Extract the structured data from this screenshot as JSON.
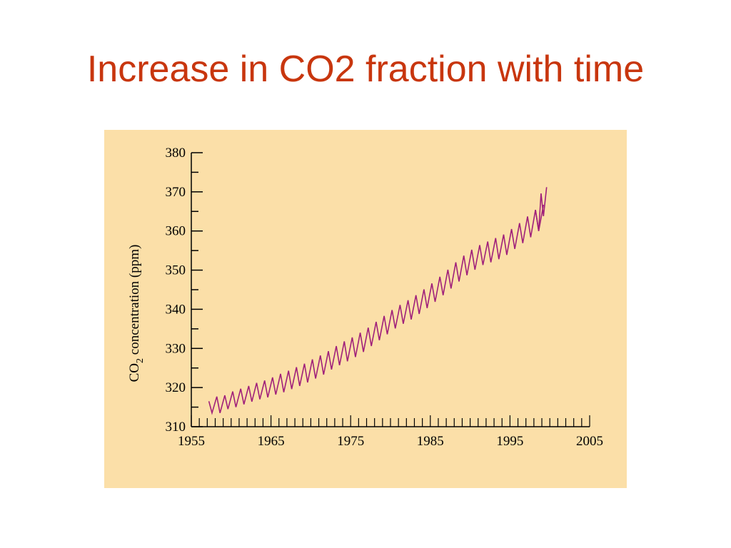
{
  "slide": {
    "title": "Increase in CO2 fraction with time",
    "title_color": "#c8360e",
    "panel_color": "#fbdfa8"
  },
  "chart_data": {
    "type": "line",
    "title": "",
    "xlabel": "",
    "ylabel": {
      "main": "CO",
      "subscript": "2",
      "rest": " concentration (ppm)"
    },
    "xlim": [
      1955,
      2005
    ],
    "ylim": [
      310,
      380
    ],
    "x_ticks": [
      "1955",
      "1965",
      "1975",
      "1985",
      "1995",
      "2005"
    ],
    "y_ticks": [
      "310",
      "320",
      "330",
      "340",
      "350",
      "360",
      "370",
      "380"
    ],
    "grid": false,
    "series": [
      {
        "color": "#a0207a",
        "x": [
          1957.2,
          1957.6,
          1958.2,
          1958.6,
          1959.2,
          1959.6,
          1960.2,
          1960.6,
          1961.2,
          1961.6,
          1962.2,
          1962.6,
          1963.2,
          1963.6,
          1964.2,
          1964.6,
          1965.2,
          1965.6,
          1966.2,
          1966.6,
          1967.2,
          1967.6,
          1968.2,
          1968.6,
          1969.2,
          1969.6,
          1970.2,
          1970.6,
          1971.2,
          1971.6,
          1972.2,
          1972.6,
          1973.2,
          1973.6,
          1974.2,
          1974.6,
          1975.2,
          1975.6,
          1976.2,
          1976.6,
          1977.2,
          1977.6,
          1978.2,
          1978.6,
          1979.2,
          1979.6,
          1980.2,
          1980.6,
          1981.2,
          1981.6,
          1982.2,
          1982.6,
          1983.2,
          1983.6,
          1984.2,
          1984.6,
          1985.2,
          1985.6,
          1986.2,
          1986.6,
          1987.2,
          1987.6,
          1988.2,
          1988.6,
          1989.2,
          1989.6,
          1990.2,
          1990.6,
          1991.2,
          1991.6,
          1992.2,
          1992.6,
          1993.2,
          1993.6,
          1994.2,
          1994.6,
          1995.2,
          1995.6,
          1996.2,
          1996.6,
          1997.2,
          1997.6,
          1998.2,
          1998.6,
          1999.2
        ],
        "y": [
          316.5,
          313.5,
          317.7,
          313.5,
          318.0,
          314.5,
          319.0,
          315.0,
          319.7,
          315.7,
          320.4,
          316.4,
          321.2,
          317.0,
          321.8,
          317.5,
          322.6,
          318.2,
          323.5,
          318.8,
          324.3,
          319.6,
          325.2,
          320.4,
          326.1,
          321.3,
          327.2,
          322.3,
          328.2,
          323.3,
          329.3,
          324.6,
          330.6,
          325.7,
          331.8,
          326.7,
          332.8,
          327.8,
          334.0,
          329.1,
          335.3,
          330.6,
          336.8,
          332.1,
          338.3,
          333.6,
          339.8,
          335.1,
          341.1,
          336.3,
          342.3,
          337.4,
          343.6,
          338.8,
          345.1,
          340.3,
          346.6,
          341.9,
          348.3,
          343.6,
          350.1,
          345.3,
          352.0,
          347.1,
          353.7,
          348.7,
          355.2,
          350.1,
          356.4,
          351.3,
          357.3,
          352.0,
          358.2,
          352.8,
          359.1,
          353.9,
          360.5,
          355.4,
          362.0,
          356.9,
          363.7,
          358.4,
          365.4,
          360.0,
          366.7
        ]
      },
      {
        "color": "#a0207a",
        "x": [
          1998.2,
          1998.6,
          1998.9,
          1999.2,
          1999.6
        ],
        "y": [
          365.4,
          360.0,
          369.6,
          363.8,
          371.2
        ]
      }
    ]
  }
}
